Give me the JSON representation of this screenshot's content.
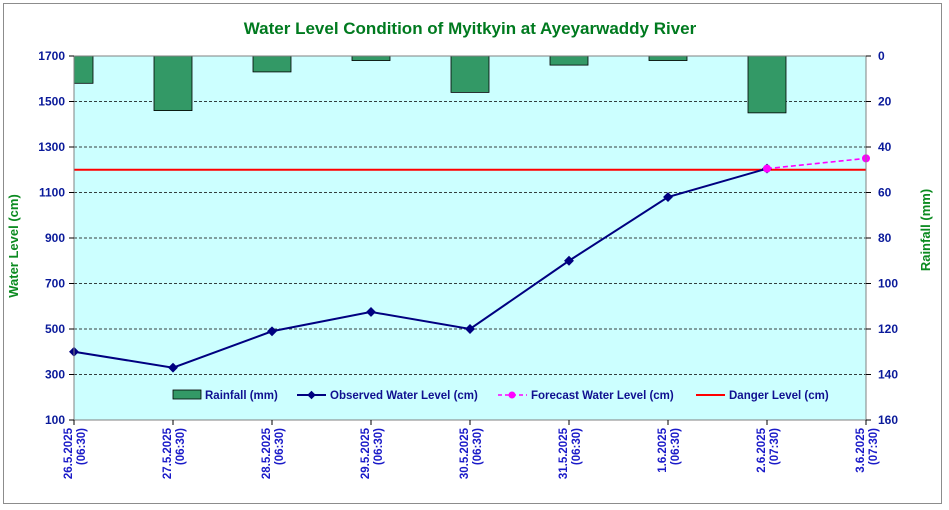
{
  "chart_data": {
    "type": "line",
    "title": "Water Level Condition of Myitkyin at Ayeyarwaddy River",
    "ylabel": "Water Level (cm)",
    "y2label": "Rainfall (mm)",
    "categories": [
      [
        "26.5.2025",
        "(06:30)"
      ],
      [
        "27.5.2025",
        "(06:30)"
      ],
      [
        "28.5.2025",
        "(06:30)"
      ],
      [
        "29.5.2025",
        "(06:30)"
      ],
      [
        "30.5.2025",
        "(06:30)"
      ],
      [
        "31.5.2025",
        "(06:30)"
      ],
      [
        "1.6.2025",
        "(06:30)"
      ],
      [
        "2.6.2025",
        "(07:30)"
      ],
      [
        "3.6.2025",
        "(07:30)"
      ]
    ],
    "ylim": [
      100,
      1700
    ],
    "yticks": [
      100,
      300,
      500,
      700,
      900,
      1100,
      1300,
      1500,
      1700
    ],
    "y2lim": [
      0,
      160
    ],
    "y2ticks": [
      0,
      20,
      40,
      60,
      80,
      100,
      120,
      140,
      160
    ],
    "grid": true,
    "legend_position": "bottom-inside",
    "series": [
      {
        "name": "Rainfall (mm)",
        "type": "bar",
        "axis": "right",
        "color": "#339966",
        "values": [
          12,
          24,
          7,
          2,
          16,
          4,
          2,
          25,
          null
        ]
      },
      {
        "name": "Observed Water Level (cm)",
        "type": "line",
        "axis": "left",
        "color": "#000080",
        "values": [
          400,
          330,
          490,
          575,
          500,
          800,
          1080,
          1205,
          null
        ]
      },
      {
        "name": "Forecast Water Level (cm)",
        "type": "line-dashed",
        "axis": "left",
        "color": "#ff00ff",
        "values": [
          null,
          null,
          null,
          null,
          null,
          null,
          null,
          1205,
          1250
        ]
      },
      {
        "name": "Danger Level (cm)",
        "type": "hline",
        "axis": "left",
        "color": "#ff0000",
        "value": 1200
      }
    ]
  }
}
